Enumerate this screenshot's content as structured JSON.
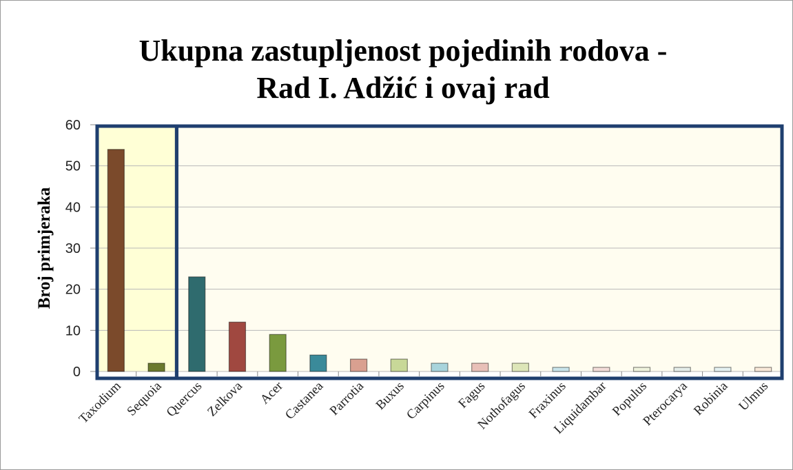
{
  "chart_data": {
    "type": "bar",
    "title": [
      "Ukupna zastupljenost pojedinih rodova -",
      "Rad I. Adžić i ovaj rad"
    ],
    "y_label": "Broj primjeraka",
    "categories": [
      "Taxodium",
      "Sequoia",
      "Quercus",
      "Zelkova",
      "Acer",
      "Castanea",
      "Parrotia",
      "Buxus",
      "Carpinus",
      "Fagus",
      "Nothofagus",
      "Fraxinus",
      "Liquidambar",
      "Populus",
      "Pterocarya",
      "Robinia",
      "Ulmus"
    ],
    "values": [
      54,
      2,
      23,
      12,
      9,
      4,
      3,
      3,
      2,
      2,
      2,
      1,
      1,
      1,
      1,
      1,
      1
    ],
    "colors": [
      "#7b4a2b",
      "#6b7a2e",
      "#2f6b6e",
      "#a04840",
      "#7a9a3e",
      "#3a8a9a",
      "#d9a090",
      "#c8d898",
      "#a8d4dc",
      "#e8c0b8",
      "#dde6b8",
      "#c8e4ea",
      "#f2dcd8",
      "#eef2dc",
      "#e4ece8",
      "#e4f0f0",
      "#f8e8d8"
    ],
    "ylim": [
      0,
      60
    ],
    "yticks": [
      0,
      10,
      20,
      30,
      40,
      50,
      60
    ],
    "grid": true
  }
}
